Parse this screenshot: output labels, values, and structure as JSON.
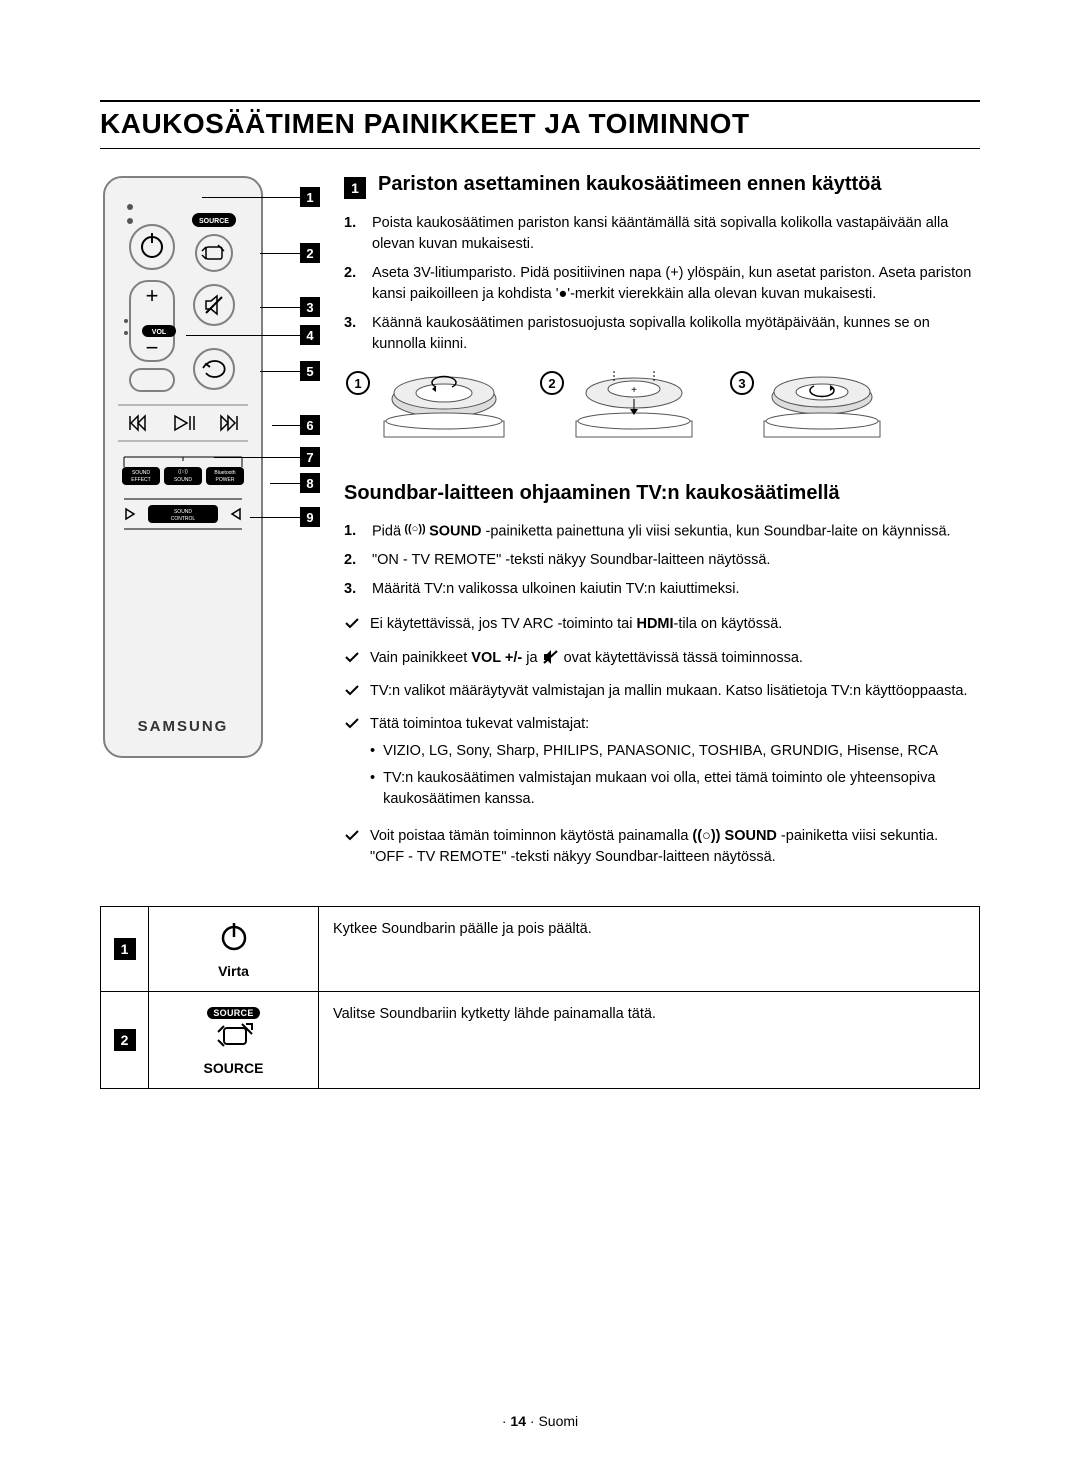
{
  "page_title": "KAUKOSÄÄTIMEN PAINIKKEET JA TOIMINNOT",
  "remote": {
    "brand": "SAMSUNG",
    "labels": {
      "source": "SOURCE",
      "vol": "VOL",
      "sound_effect": "SOUND EFFECT",
      "sound": "SOUND",
      "bluetooth_power": "Bluetooth POWER",
      "sound_control": "SOUND CONTROL"
    },
    "callouts": [
      "1",
      "2",
      "3",
      "4",
      "5",
      "6",
      "7",
      "8",
      "9"
    ]
  },
  "section_a": {
    "num": "1",
    "heading": "Pariston asettaminen kaukosäätimeen ennen käyttöä",
    "steps": [
      {
        "n": "1.",
        "text": "Poista kaukosäätimen pariston kansi kääntämällä sitä sopivalla kolikolla vastapäivään alla olevan kuvan mukaisesti."
      },
      {
        "n": "2.",
        "text": "Aseta 3V-litiumparisto. Pidä positiivinen napa (+) ylöspäin, kun asetat pariston. Aseta pariston kansi paikoilleen ja kohdista '●'-merkit vierekkäin alla olevan kuvan mukaisesti."
      },
      {
        "n": "3.",
        "text": "Käännä kaukosäätimen paristosuojusta sopivalla kolikolla myötäpäivään, kunnes se on kunnolla kiinni."
      }
    ],
    "fig_nums": [
      "1",
      "2",
      "3"
    ]
  },
  "section_b": {
    "heading": "Soundbar-laitteen ohjaaminen TV:n kaukosäätimellä",
    "steps": [
      {
        "n": "1.",
        "prefix": "Pidä ",
        "icon_label": "SOUND",
        "after_icon": " -painiketta painettuna yli viisi sekuntia, kun Soundbar-laite on käynnissä."
      },
      {
        "n": "2.",
        "text": "\"ON - TV REMOTE\" -teksti näkyy Soundbar-laitteen näytössä."
      },
      {
        "n": "3.",
        "text": "Määritä TV:n valikossa ulkoinen kaiutin TV:n kaiuttimeksi."
      }
    ],
    "checks": [
      {
        "parts": [
          "Ei käytettävissä, jos TV ARC -toiminto tai ",
          {
            "bold": "HDMI"
          },
          "-tila on käytössä."
        ]
      },
      {
        "parts": [
          "Vain painikkeet ",
          {
            "bold": "VOL +/-"
          },
          " ja ",
          {
            "mute_icon": true
          },
          " ovat käytettävissä tässä toiminnossa."
        ]
      },
      {
        "parts": [
          "TV:n valikot määräytyvät valmistajan ja mallin mukaan. Katso lisätietoja TV:n käyttöoppaasta."
        ]
      },
      {
        "parts": [
          "Tätä toimintoa tukevat valmistajat:"
        ],
        "bullets": [
          "VIZIO, LG, Sony, Sharp, PHILIPS, PANASONIC, TOSHIBA, GRUNDIG, Hisense, RCA",
          "TV:n kaukosäätimen valmistajan mukaan voi olla, ettei tämä toiminto ole yhteensopiva kaukosäätimen kanssa."
        ]
      },
      {
        "parts": [
          "Voit poistaa tämän toiminnon käytöstä painamalla ",
          {
            "sound_icon": true
          },
          " ",
          {
            "bold": "SOUND"
          },
          " -painiketta viisi sekuntia."
        ],
        "tail": "\"OFF - TV REMOTE\" -teksti näkyy Soundbar-laitteen näytössä."
      }
    ]
  },
  "table": {
    "rows": [
      {
        "num": "1",
        "icon": "power",
        "label": "Virta",
        "desc": "Kytkee Soundbarin päälle ja pois päältä."
      },
      {
        "num": "2",
        "icon": "source",
        "label": "SOURCE",
        "desc": "Valitse Soundbariin kytketty lähde painamalla tätä."
      }
    ]
  },
  "footer": {
    "page": "14",
    "lang": "Suomi"
  },
  "colors": {
    "black": "#000000",
    "white": "#ffffff",
    "remote_body": "#f2f2f2",
    "remote_border": "#808080"
  }
}
